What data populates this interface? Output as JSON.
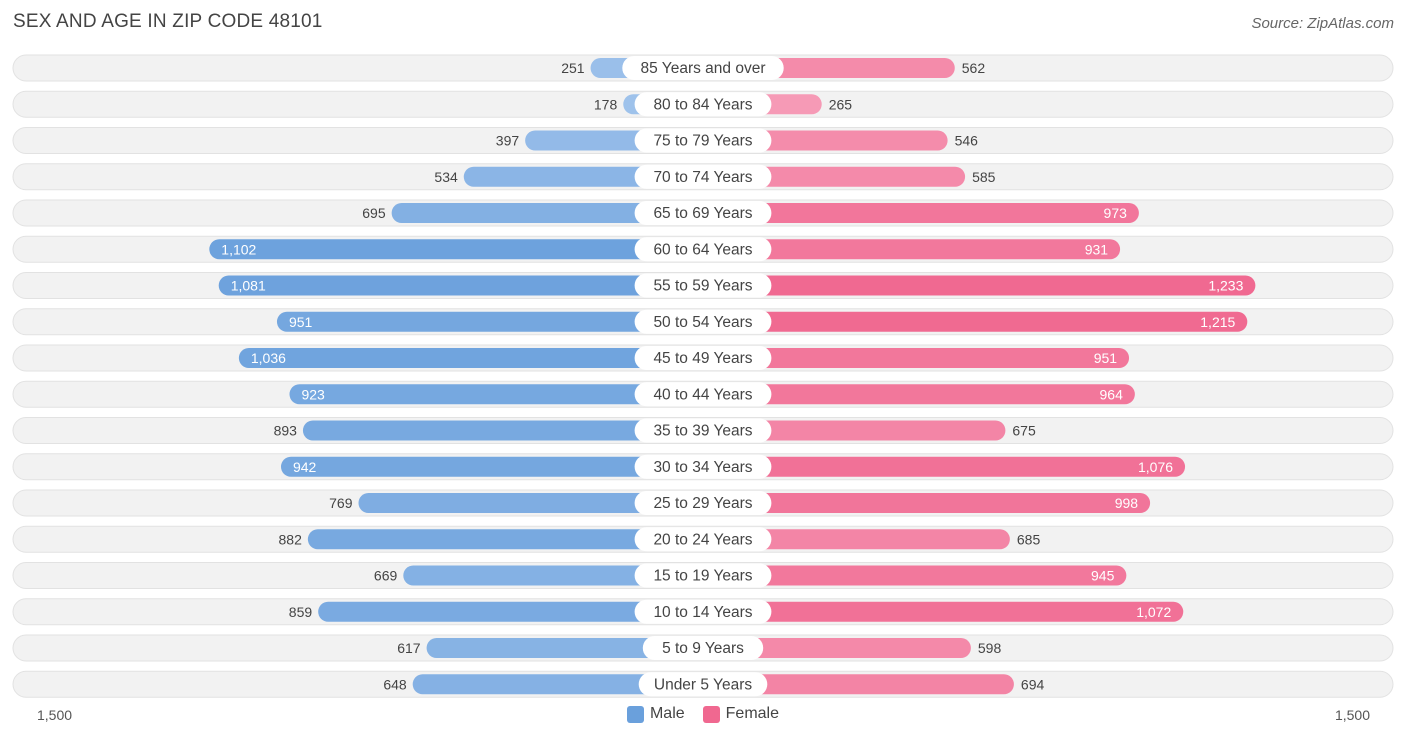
{
  "header": {
    "title": "SEX AND AGE IN ZIP CODE 48101",
    "source": "Source: ZipAtlas.com"
  },
  "colors": {
    "male": "#6aa0dc",
    "male_light": "#a8c8ee",
    "female": "#f06890",
    "female_light": "#f7a8c0",
    "row_bg": "#eeeeee"
  },
  "legend": {
    "male_label": "Male",
    "female_label": "Female"
  },
  "axis": {
    "left_label": "1,500",
    "right_label": "1,500"
  },
  "chart_data": {
    "type": "bar",
    "orientation": "horizontal-diverging",
    "xlim": [
      -1500,
      1500
    ],
    "categories": [
      "85 Years and over",
      "80 to 84 Years",
      "75 to 79 Years",
      "70 to 74 Years",
      "65 to 69 Years",
      "60 to 64 Years",
      "55 to 59 Years",
      "50 to 54 Years",
      "45 to 49 Years",
      "40 to 44 Years",
      "35 to 39 Years",
      "30 to 34 Years",
      "25 to 29 Years",
      "20 to 24 Years",
      "15 to 19 Years",
      "10 to 14 Years",
      "5 to 9 Years",
      "Under 5 Years"
    ],
    "series": [
      {
        "name": "Male",
        "values": [
          251,
          178,
          397,
          534,
          695,
          1102,
          1081,
          951,
          1036,
          923,
          893,
          942,
          769,
          882,
          669,
          859,
          617,
          648
        ],
        "labels": [
          "251",
          "178",
          "397",
          "534",
          "695",
          "1,102",
          "1,081",
          "951",
          "1,036",
          "923",
          "893",
          "942",
          "769",
          "882",
          "669",
          "859",
          "617",
          "648"
        ]
      },
      {
        "name": "Female",
        "values": [
          562,
          265,
          546,
          585,
          973,
          931,
          1233,
          1215,
          951,
          964,
          675,
          1076,
          998,
          685,
          945,
          1072,
          598,
          694
        ],
        "labels": [
          "562",
          "265",
          "546",
          "585",
          "973",
          "931",
          "1,233",
          "1,215",
          "951",
          "964",
          "675",
          "1,076",
          "998",
          "685",
          "945",
          "1,072",
          "598",
          "694"
        ]
      }
    ],
    "legend_position": "bottom-center"
  }
}
